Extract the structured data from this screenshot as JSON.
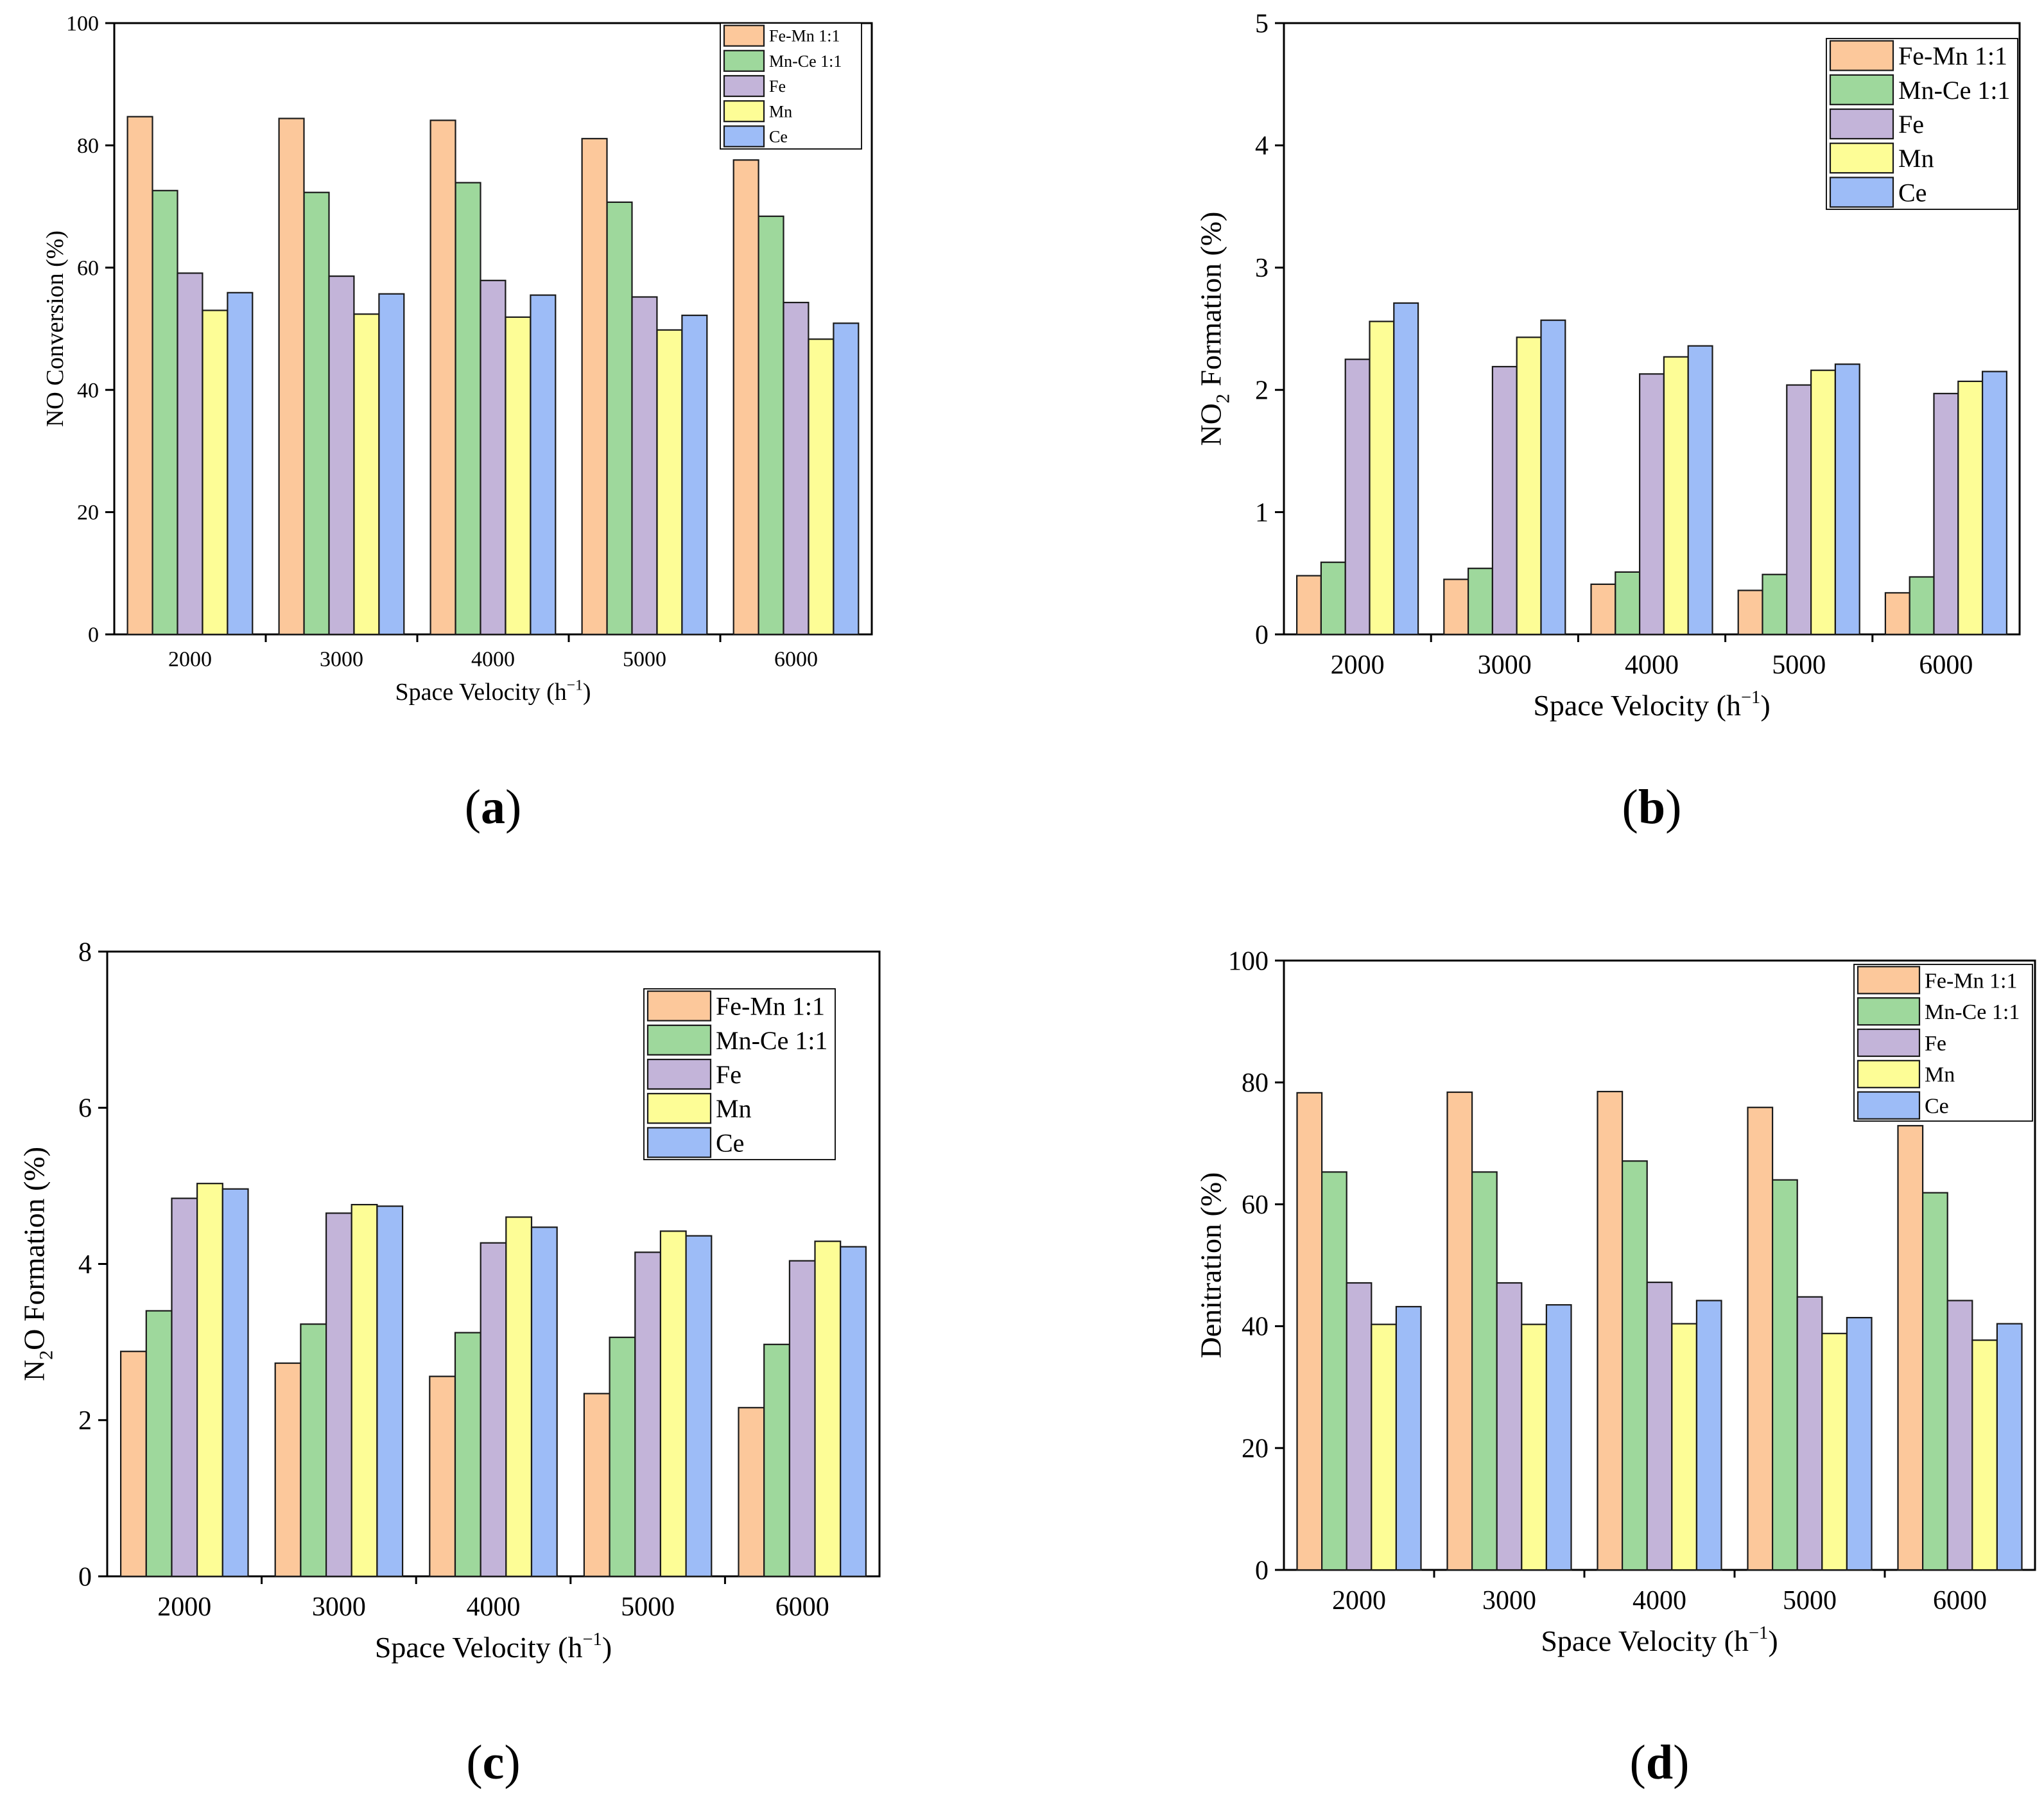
{
  "colors": {
    "Fe-Mn 1:1": "#fcc89b",
    "Mn-Ce 1:1": "#9ed89c",
    "Fe": "#c3b4d9",
    "Mn": "#fdfd96",
    "Ce": "#9dbcf7"
  },
  "chart_data": [
    {
      "panel": "a",
      "panel_label": [
        "(",
        "a",
        ")"
      ],
      "type": "bar",
      "categories": [
        "2000",
        "3000",
        "4000",
        "5000",
        "6000"
      ],
      "series": [
        {
          "name": "Fe-Mn 1:1",
          "values": [
            84.7,
            84.4,
            84.1,
            81.1,
            77.6
          ]
        },
        {
          "name": "Mn-Ce 1:1",
          "values": [
            72.6,
            72.3,
            73.9,
            70.7,
            68.4
          ]
        },
        {
          "name": "Fe",
          "values": [
            59.1,
            58.6,
            57.9,
            55.2,
            54.3
          ]
        },
        {
          "name": "Mn",
          "values": [
            53.0,
            52.4,
            51.9,
            49.8,
            48.3
          ]
        },
        {
          "name": "Ce",
          "values": [
            55.9,
            55.7,
            55.5,
            52.2,
            50.9
          ]
        }
      ],
      "ylabel": "NO Conversion (%)",
      "xlabel": "Space Velocity (h",
      "xlabel_sup": "−1",
      "xlabel_end": ")",
      "ylim": [
        0,
        100
      ],
      "yticks": [
        "0",
        "20",
        "40",
        "60",
        "80",
        "100"
      ],
      "legend": [
        "Fe-Mn 1:1",
        "Mn-Ce 1:1",
        "Fe",
        "Mn",
        "Ce"
      ],
      "legend_position": "top-right"
    },
    {
      "panel": "b",
      "panel_label": [
        "(",
        "b",
        ")"
      ],
      "type": "bar",
      "categories": [
        "2000",
        "3000",
        "4000",
        "5000",
        "6000"
      ],
      "series": [
        {
          "name": "Fe-Mn 1:1",
          "values": [
            0.48,
            0.45,
            0.41,
            0.36,
            0.34
          ]
        },
        {
          "name": "Mn-Ce 1:1",
          "values": [
            0.59,
            0.54,
            0.51,
            0.49,
            0.47
          ]
        },
        {
          "name": "Fe",
          "values": [
            2.25,
            2.19,
            2.13,
            2.04,
            1.97
          ]
        },
        {
          "name": "Mn",
          "values": [
            2.56,
            2.43,
            2.27,
            2.16,
            2.07
          ]
        },
        {
          "name": "Ce",
          "values": [
            2.71,
            2.57,
            2.36,
            2.21,
            2.15
          ]
        }
      ],
      "ylabel": "NO",
      "ylabel_sub": "2",
      "ylabel_end": " Formation (%)",
      "xlabel": "Space Velocity (h",
      "xlabel_sup": "−1",
      "xlabel_end": ")",
      "ylim": [
        0,
        5
      ],
      "yticks": [
        "0",
        "1",
        "2",
        "3",
        "4",
        "5"
      ],
      "legend": [
        "Fe-Mn 1:1",
        "Mn-Ce 1:1",
        "Fe",
        "Mn",
        "Ce"
      ],
      "legend_position": "top-right"
    },
    {
      "panel": "c",
      "panel_label": [
        "(",
        "c",
        ")"
      ],
      "type": "bar",
      "categories": [
        "2000",
        "3000",
        "4000",
        "5000",
        "6000"
      ],
      "series": [
        {
          "name": "Fe-Mn 1:1",
          "values": [
            2.88,
            2.73,
            2.56,
            2.34,
            2.16
          ]
        },
        {
          "name": "Mn-Ce 1:1",
          "values": [
            3.4,
            3.23,
            3.12,
            3.06,
            2.97
          ]
        },
        {
          "name": "Fe",
          "values": [
            4.84,
            4.65,
            4.27,
            4.15,
            4.04
          ]
        },
        {
          "name": "Mn",
          "values": [
            5.03,
            4.76,
            4.6,
            4.42,
            4.29
          ]
        },
        {
          "name": "Ce",
          "values": [
            4.96,
            4.74,
            4.47,
            4.36,
            4.22
          ]
        }
      ],
      "ylabel": "N",
      "ylabel_sub": "2",
      "ylabel_end": "O Formation (%)",
      "xlabel": "Space Velocity (h",
      "xlabel_sup": "−1",
      "xlabel_end": ")",
      "ylim": [
        0,
        8
      ],
      "yticks": [
        "0",
        "2",
        "4",
        "6",
        "8"
      ],
      "legend": [
        "Fe-Mn 1:1",
        "Mn-Ce 1:1",
        "Fe",
        "Mn",
        "Ce"
      ],
      "legend_position": "top-right"
    },
    {
      "panel": "d",
      "panel_label": [
        "(",
        "d",
        ")"
      ],
      "type": "bar",
      "categories": [
        "2000",
        "3000",
        "4000",
        "5000",
        "6000"
      ],
      "series": [
        {
          "name": "Fe-Mn 1:1",
          "values": [
            78.3,
            78.4,
            78.5,
            75.9,
            72.9
          ]
        },
        {
          "name": "Mn-Ce 1:1",
          "values": [
            65.3,
            65.3,
            67.1,
            64.0,
            61.9
          ]
        },
        {
          "name": "Fe",
          "values": [
            47.1,
            47.1,
            47.2,
            44.8,
            44.2
          ]
        },
        {
          "name": "Mn",
          "values": [
            40.3,
            40.3,
            40.4,
            38.8,
            37.7
          ]
        },
        {
          "name": "Ce",
          "values": [
            43.2,
            43.5,
            44.2,
            41.4,
            40.4
          ]
        }
      ],
      "ylabel": "Denitration (%)",
      "xlabel": "Space Velocity (h",
      "xlabel_sup": "−1",
      "xlabel_end": ")",
      "ylim": [
        0,
        100
      ],
      "yticks": [
        "0",
        "20",
        "40",
        "60",
        "80",
        "100"
      ],
      "legend": [
        "Fe-Mn 1:1",
        "Mn-Ce 1:1",
        "Fe",
        "Mn",
        "Ce"
      ],
      "legend_position": "top-right"
    }
  ]
}
